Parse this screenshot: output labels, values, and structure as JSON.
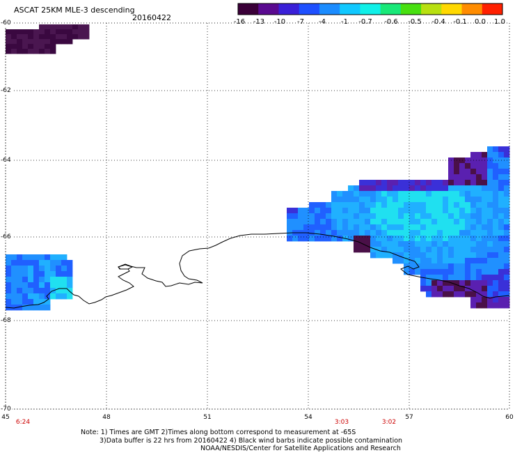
{
  "header": {
    "title": "ASCAT 25KM MLE-3 descending",
    "date": "20160422"
  },
  "colorbar": {
    "labels": [
      "-16",
      "-13",
      "-10",
      "-7",
      "-4",
      "-1",
      "-0.7",
      "-0.6",
      "-0.5",
      "-0.4",
      "-0.1",
      "0.0",
      "1.0"
    ],
    "colors": [
      "#3a0038",
      "#5a0a90",
      "#3a20d8",
      "#1e50ff",
      "#1b8cff",
      "#10c8ff",
      "#10f0e8",
      "#18e878",
      "#48e010",
      "#b8e010",
      "#ffd800",
      "#ff8c00",
      "#ff2000"
    ]
  },
  "map": {
    "lat_labels": [
      "-60",
      "-62",
      "-64",
      "-66",
      "-68",
      "-70"
    ],
    "lon_labels": [
      "45",
      "48",
      "51",
      "54",
      "57",
      "60"
    ],
    "times": [
      "6:24",
      "3:03",
      "3:02"
    ],
    "colors": {
      "dark": "#4a1048",
      "purple": "#5a20b0",
      "indigo": "#3a30d8",
      "blue": "#2060ff",
      "mid": "#2090ff",
      "light": "#20b0ff",
      "cyan": "#20e0f0"
    }
  },
  "notes": [
    "Note: 1) Times are GMT 2)Times along bottom correspond to measurement at -65S",
    "3)Data buffer is 22 hrs from 20160422 4) Black wind barbs indicate possible contamination",
    "NOAA/NESDIS/Center for Satellite Applications and Research"
  ]
}
